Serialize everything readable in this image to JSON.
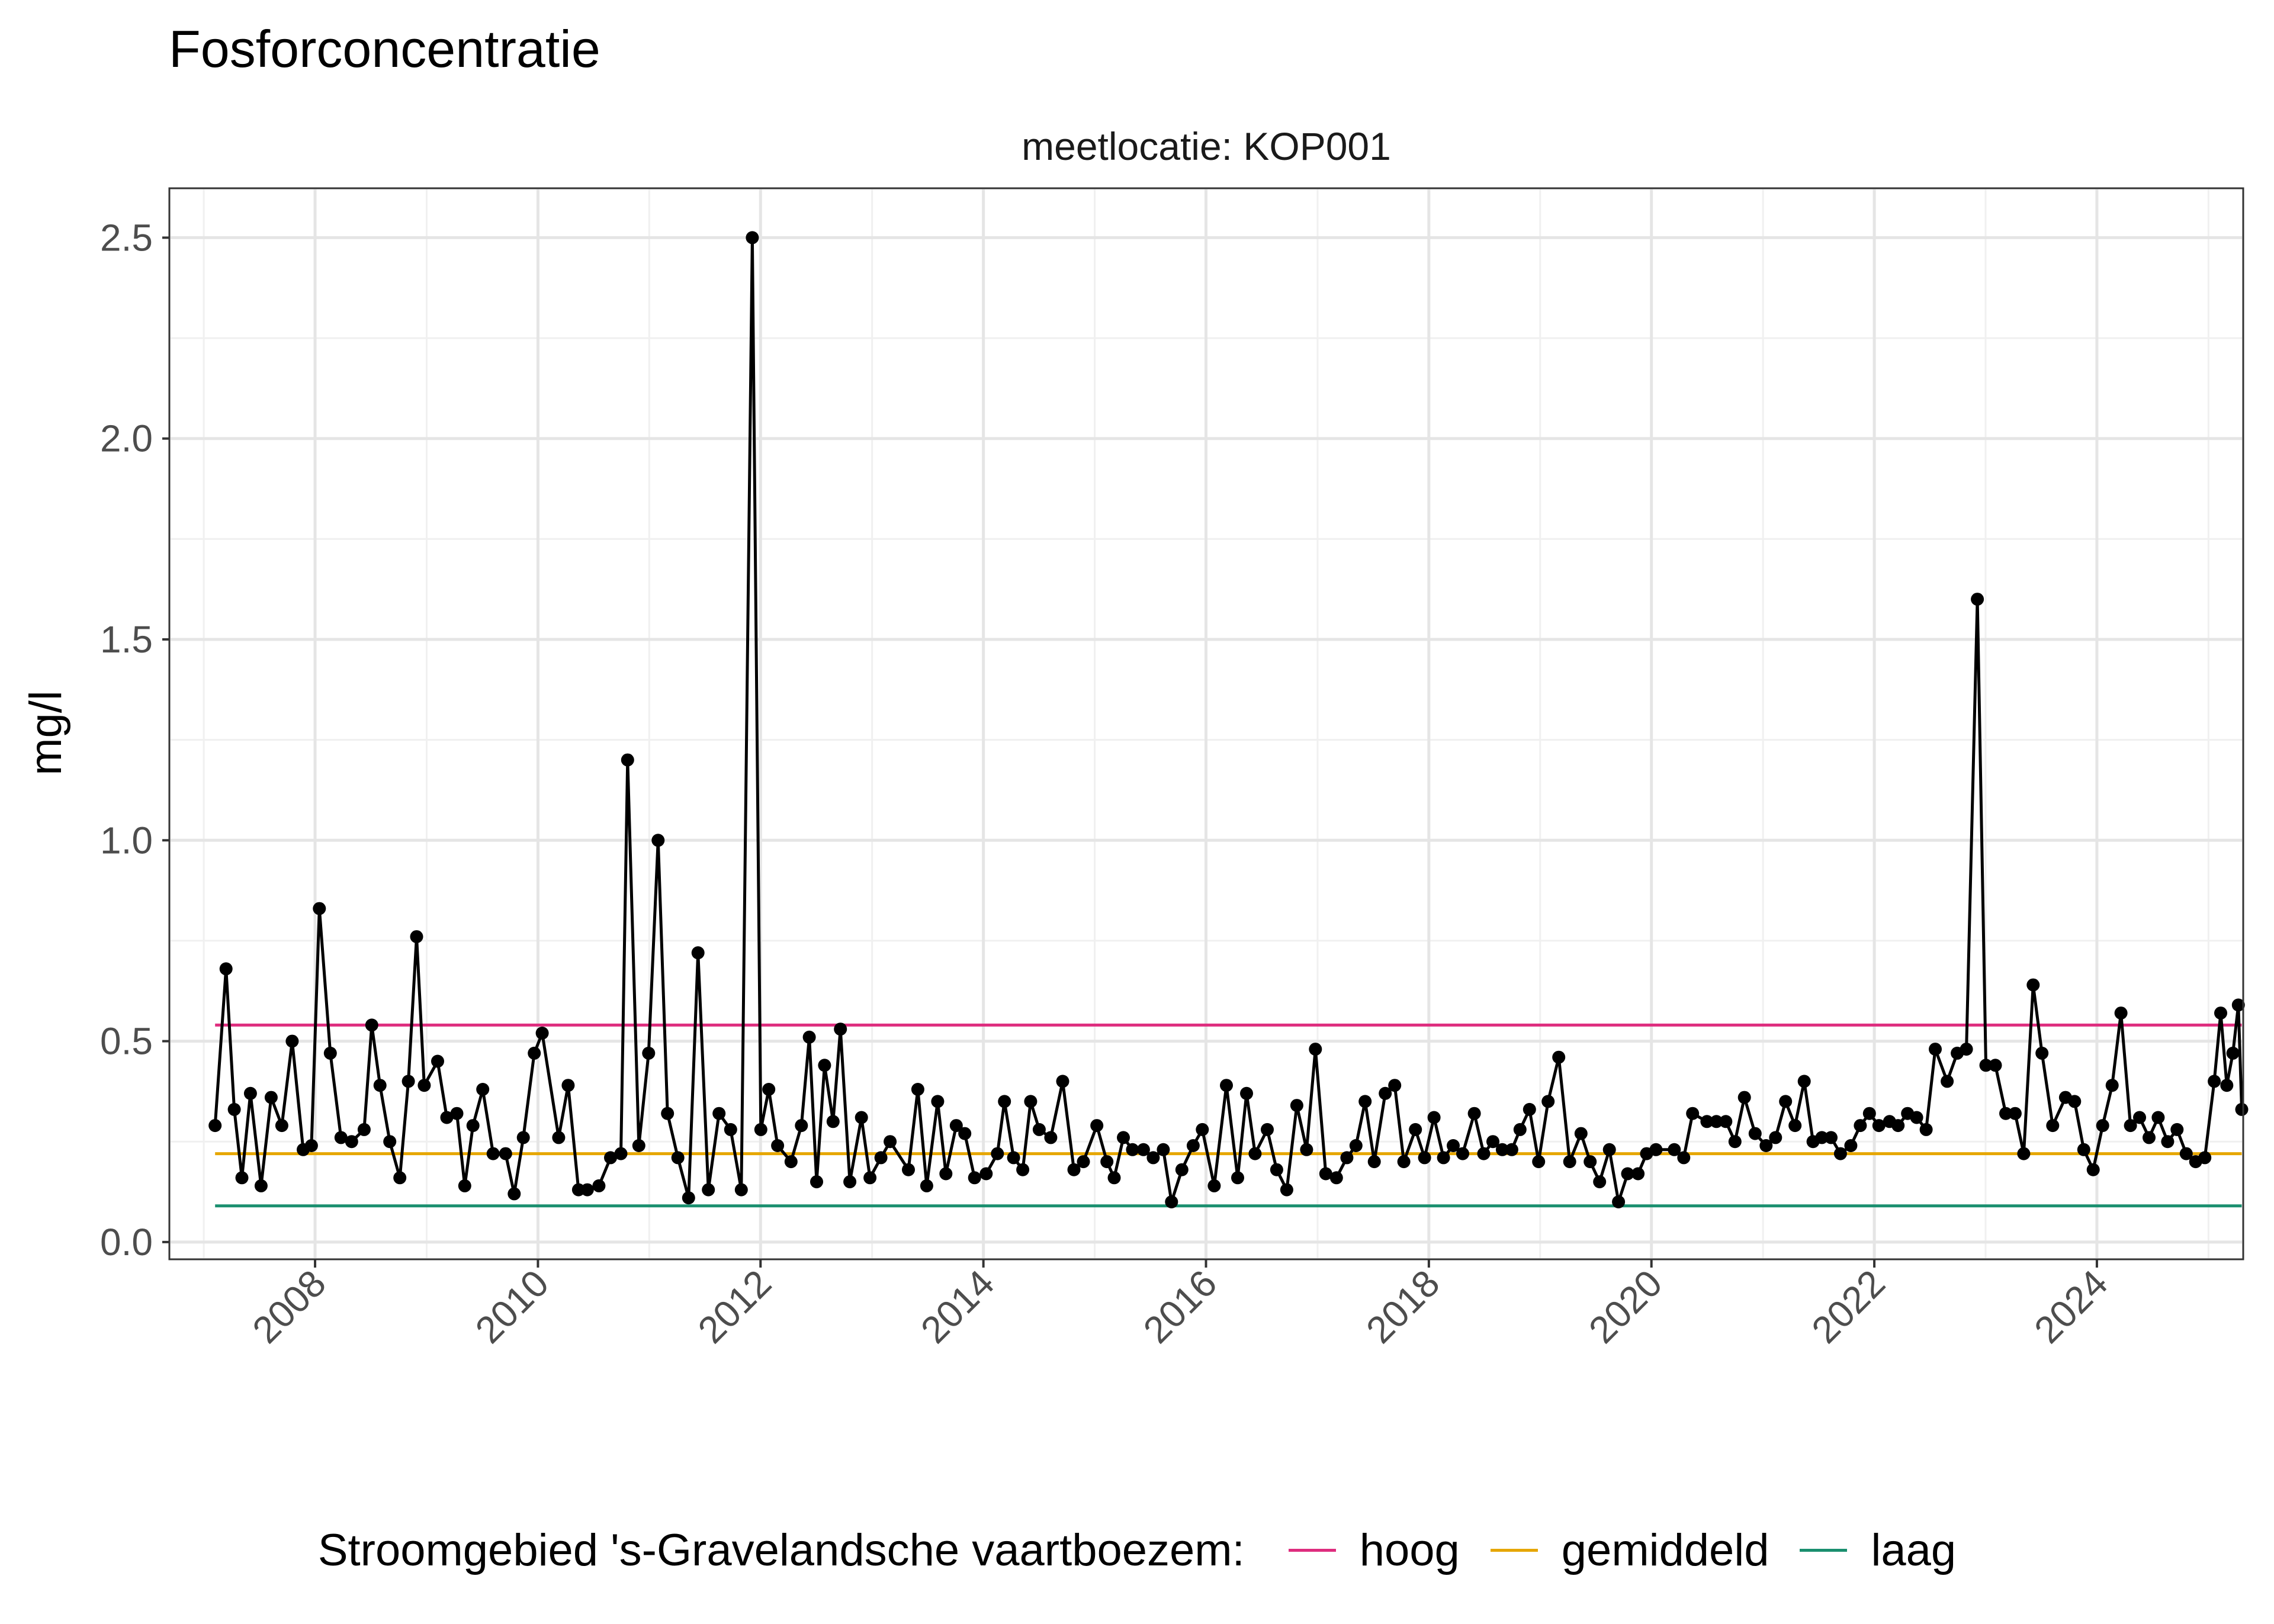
{
  "chart_data": {
    "type": "line",
    "title": "Fosforconcentratie",
    "facet_label": "meetlocatie: KOP001",
    "xlabel": "",
    "ylabel": "mg/l",
    "x_ticks": [
      "2008",
      "2010",
      "2012",
      "2014",
      "2016",
      "2018",
      "2020",
      "2022",
      "2024"
    ],
    "y_ticks": [
      "0.0",
      "0.5",
      "1.0",
      "1.5",
      "2.0",
      "2.5"
    ],
    "xlim": [
      "2006-09-14",
      "2025-04-21"
    ],
    "ylim": [
      -0.04,
      2.62
    ],
    "grid": true,
    "legend_position": "bottom",
    "legend_title": "Stroomgebied 's-Gravelandsche vaartboezem:",
    "series": [
      {
        "name": "",
        "color": "#000000",
        "points": [
          [
            "2007-02-07",
            0.29
          ],
          [
            "2007-03-15",
            0.68
          ],
          [
            "2007-04-11",
            0.33
          ],
          [
            "2007-05-06",
            0.16
          ],
          [
            "2007-06-03",
            0.37
          ],
          [
            "2007-07-08",
            0.14
          ],
          [
            "2007-08-10",
            0.36
          ],
          [
            "2007-09-14",
            0.29
          ],
          [
            "2007-10-18",
            0.5
          ],
          [
            "2007-11-23",
            0.23
          ],
          [
            "2007-12-20",
            0.24
          ],
          [
            "2008-01-15",
            0.83
          ],
          [
            "2008-02-20",
            0.47
          ],
          [
            "2008-03-26",
            0.26
          ],
          [
            "2008-04-30",
            0.25
          ],
          [
            "2008-06-10",
            0.28
          ],
          [
            "2008-07-05",
            0.54
          ],
          [
            "2008-08-01",
            0.39
          ],
          [
            "2008-09-02",
            0.25
          ],
          [
            "2008-10-05",
            0.16
          ],
          [
            "2008-11-02",
            0.4
          ],
          [
            "2008-11-29",
            0.76
          ],
          [
            "2008-12-24",
            0.39
          ],
          [
            "2009-02-06",
            0.45
          ],
          [
            "2009-03-08",
            0.31
          ],
          [
            "2009-04-10",
            0.32
          ],
          [
            "2009-05-06",
            0.14
          ],
          [
            "2009-06-02",
            0.29
          ],
          [
            "2009-07-04",
            0.38
          ],
          [
            "2009-08-07",
            0.22
          ],
          [
            "2009-09-17",
            0.22
          ],
          [
            "2009-10-15",
            0.12
          ],
          [
            "2009-11-14",
            0.26
          ],
          [
            "2009-12-20",
            0.47
          ],
          [
            "2010-01-15",
            0.52
          ],
          [
            "2010-03-10",
            0.26
          ],
          [
            "2010-04-10",
            0.39
          ],
          [
            "2010-05-14",
            0.13
          ],
          [
            "2010-06-12",
            0.13
          ],
          [
            "2010-07-20",
            0.14
          ],
          [
            "2010-08-27",
            0.21
          ],
          [
            "2010-09-30",
            0.22
          ],
          [
            "2010-10-22",
            1.2
          ],
          [
            "2010-11-28",
            0.24
          ],
          [
            "2010-12-30",
            0.47
          ],
          [
            "2011-01-30",
            1.0
          ],
          [
            "2011-03-02",
            0.32
          ],
          [
            "2011-04-05",
            0.21
          ],
          [
            "2011-05-10",
            0.11
          ],
          [
            "2011-06-10",
            0.72
          ],
          [
            "2011-07-14",
            0.13
          ],
          [
            "2011-08-18",
            0.32
          ],
          [
            "2011-09-25",
            0.28
          ],
          [
            "2011-10-30",
            0.13
          ],
          [
            "2011-12-05",
            2.5
          ],
          [
            "2012-01-02",
            0.28
          ],
          [
            "2012-01-28",
            0.38
          ],
          [
            "2012-02-26",
            0.24
          ],
          [
            "2012-04-10",
            0.2
          ],
          [
            "2012-05-14",
            0.29
          ],
          [
            "2012-06-09",
            0.51
          ],
          [
            "2012-07-03",
            0.15
          ],
          [
            "2012-07-29",
            0.44
          ],
          [
            "2012-08-26",
            0.3
          ],
          [
            "2012-09-19",
            0.53
          ],
          [
            "2012-10-20",
            0.15
          ],
          [
            "2012-11-27",
            0.31
          ],
          [
            "2012-12-25",
            0.16
          ],
          [
            "2013-01-30",
            0.21
          ],
          [
            "2013-03-01",
            0.25
          ],
          [
            "2013-04-30",
            0.18
          ],
          [
            "2013-05-31",
            0.38
          ],
          [
            "2013-06-29",
            0.14
          ],
          [
            "2013-08-04",
            0.35
          ],
          [
            "2013-08-31",
            0.17
          ],
          [
            "2013-10-04",
            0.29
          ],
          [
            "2013-11-01",
            0.27
          ],
          [
            "2013-12-03",
            0.16
          ],
          [
            "2014-01-10",
            0.17
          ],
          [
            "2014-02-16",
            0.22
          ],
          [
            "2014-03-11",
            0.35
          ],
          [
            "2014-04-10",
            0.21
          ],
          [
            "2014-05-10",
            0.18
          ],
          [
            "2014-06-05",
            0.35
          ],
          [
            "2014-07-03",
            0.28
          ],
          [
            "2014-08-10",
            0.26
          ],
          [
            "2014-09-18",
            0.4
          ],
          [
            "2014-10-25",
            0.18
          ],
          [
            "2014-11-25",
            0.2
          ],
          [
            "2015-01-08",
            0.29
          ],
          [
            "2015-02-10",
            0.2
          ],
          [
            "2015-03-06",
            0.16
          ],
          [
            "2015-04-05",
            0.26
          ],
          [
            "2015-05-05",
            0.23
          ],
          [
            "2015-06-10",
            0.23
          ],
          [
            "2015-07-12",
            0.21
          ],
          [
            "2015-08-14",
            0.23
          ],
          [
            "2015-09-10",
            0.1
          ],
          [
            "2015-10-14",
            0.18
          ],
          [
            "2015-11-20",
            0.24
          ],
          [
            "2015-12-20",
            0.28
          ],
          [
            "2016-01-28",
            0.14
          ],
          [
            "2016-03-08",
            0.39
          ],
          [
            "2016-04-14",
            0.16
          ],
          [
            "2016-05-13",
            0.37
          ],
          [
            "2016-06-10",
            0.22
          ],
          [
            "2016-07-20",
            0.28
          ],
          [
            "2016-08-20",
            0.18
          ],
          [
            "2016-09-22",
            0.13
          ],
          [
            "2016-10-25",
            0.34
          ],
          [
            "2016-11-26",
            0.23
          ],
          [
            "2016-12-25",
            0.48
          ],
          [
            "2017-01-28",
            0.17
          ],
          [
            "2017-03-04",
            0.16
          ],
          [
            "2017-04-07",
            0.21
          ],
          [
            "2017-05-07",
            0.24
          ],
          [
            "2017-06-06",
            0.35
          ],
          [
            "2017-07-06",
            0.2
          ],
          [
            "2017-08-11",
            0.37
          ],
          [
            "2017-09-11",
            0.39
          ],
          [
            "2017-10-11",
            0.2
          ],
          [
            "2017-11-18",
            0.28
          ],
          [
            "2017-12-18",
            0.21
          ],
          [
            "2018-01-18",
            0.31
          ],
          [
            "2018-02-18",
            0.21
          ],
          [
            "2018-03-22",
            0.24
          ],
          [
            "2018-04-22",
            0.22
          ],
          [
            "2018-05-30",
            0.32
          ],
          [
            "2018-06-30",
            0.22
          ],
          [
            "2018-07-30",
            0.25
          ],
          [
            "2018-08-30",
            0.23
          ],
          [
            "2018-09-30",
            0.23
          ],
          [
            "2018-10-27",
            0.28
          ],
          [
            "2018-11-27",
            0.33
          ],
          [
            "2018-12-27",
            0.2
          ],
          [
            "2019-01-27",
            0.35
          ],
          [
            "2019-03-03",
            0.46
          ],
          [
            "2019-04-08",
            0.2
          ],
          [
            "2019-05-15",
            0.27
          ],
          [
            "2019-06-14",
            0.2
          ],
          [
            "2019-07-15",
            0.15
          ],
          [
            "2019-08-16",
            0.23
          ],
          [
            "2019-09-15",
            0.1
          ],
          [
            "2019-10-15",
            0.17
          ],
          [
            "2019-11-18",
            0.17
          ],
          [
            "2019-12-16",
            0.22
          ],
          [
            "2020-01-16",
            0.23
          ],
          [
            "2020-03-16",
            0.23
          ],
          [
            "2020-04-16",
            0.21
          ],
          [
            "2020-05-15",
            0.32
          ],
          [
            "2020-07-01",
            0.3
          ],
          [
            "2020-08-01",
            0.3
          ],
          [
            "2020-09-01",
            0.3
          ],
          [
            "2020-10-01",
            0.25
          ],
          [
            "2020-11-01",
            0.36
          ],
          [
            "2020-12-06",
            0.27
          ],
          [
            "2021-01-11",
            0.24
          ],
          [
            "2021-02-11",
            0.26
          ],
          [
            "2021-03-16",
            0.35
          ],
          [
            "2021-04-16",
            0.29
          ],
          [
            "2021-05-16",
            0.4
          ],
          [
            "2021-06-14",
            0.25
          ],
          [
            "2021-07-13",
            0.26
          ],
          [
            "2021-08-12",
            0.26
          ],
          [
            "2021-09-12",
            0.22
          ],
          [
            "2021-10-16",
            0.24
          ],
          [
            "2021-11-16",
            0.29
          ],
          [
            "2021-12-16",
            0.32
          ],
          [
            "2022-01-16",
            0.29
          ],
          [
            "2022-02-20",
            0.3
          ],
          [
            "2022-03-20",
            0.29
          ],
          [
            "2022-04-20",
            0.32
          ],
          [
            "2022-05-20",
            0.31
          ],
          [
            "2022-06-20",
            0.28
          ],
          [
            "2022-07-20",
            0.48
          ],
          [
            "2022-08-28",
            0.4
          ],
          [
            "2022-09-30",
            0.47
          ],
          [
            "2022-10-30",
            0.48
          ],
          [
            "2022-12-05",
            1.6
          ],
          [
            "2023-01-02",
            0.44
          ],
          [
            "2023-02-02",
            0.44
          ],
          [
            "2023-03-08",
            0.32
          ],
          [
            "2023-04-08",
            0.32
          ],
          [
            "2023-05-06",
            0.22
          ],
          [
            "2023-06-06",
            0.64
          ],
          [
            "2023-07-05",
            0.47
          ],
          [
            "2023-08-09",
            0.29
          ],
          [
            "2023-09-20",
            0.36
          ],
          [
            "2023-10-20",
            0.35
          ],
          [
            "2023-11-19",
            0.23
          ],
          [
            "2023-12-20",
            0.18
          ],
          [
            "2024-01-20",
            0.29
          ],
          [
            "2024-02-20",
            0.39
          ],
          [
            "2024-03-20",
            0.57
          ],
          [
            "2024-04-20",
            0.29
          ],
          [
            "2024-05-20",
            0.31
          ],
          [
            "2024-06-20",
            0.26
          ],
          [
            "2024-07-20",
            0.31
          ],
          [
            "2024-08-20",
            0.25
          ],
          [
            "2024-09-20",
            0.28
          ],
          [
            "2024-10-20",
            0.22
          ],
          [
            "2024-11-20",
            0.2
          ],
          [
            "2024-12-20",
            0.21
          ],
          [
            "2025-01-20",
            0.4
          ],
          [
            "2025-02-10",
            0.57
          ],
          [
            "2025-03-02",
            0.39
          ],
          [
            "2025-03-22",
            0.47
          ],
          [
            "2025-04-09",
            0.59
          ],
          [
            "2025-04-20",
            0.33
          ]
        ]
      },
      {
        "name": "hoog",
        "color": "#DE2D7E",
        "points": [
          [
            "2007-02-07",
            0.54
          ],
          [
            "2025-04-20",
            0.54
          ]
        ]
      },
      {
        "name": "gemiddeld",
        "color": "#E6A600",
        "points": [
          [
            "2007-02-07",
            0.22
          ],
          [
            "2025-04-20",
            0.22
          ]
        ]
      },
      {
        "name": "laag",
        "color": "#1A8F6F",
        "points": [
          [
            "2007-02-07",
            0.09
          ],
          [
            "2025-04-20",
            0.09
          ]
        ]
      }
    ]
  }
}
